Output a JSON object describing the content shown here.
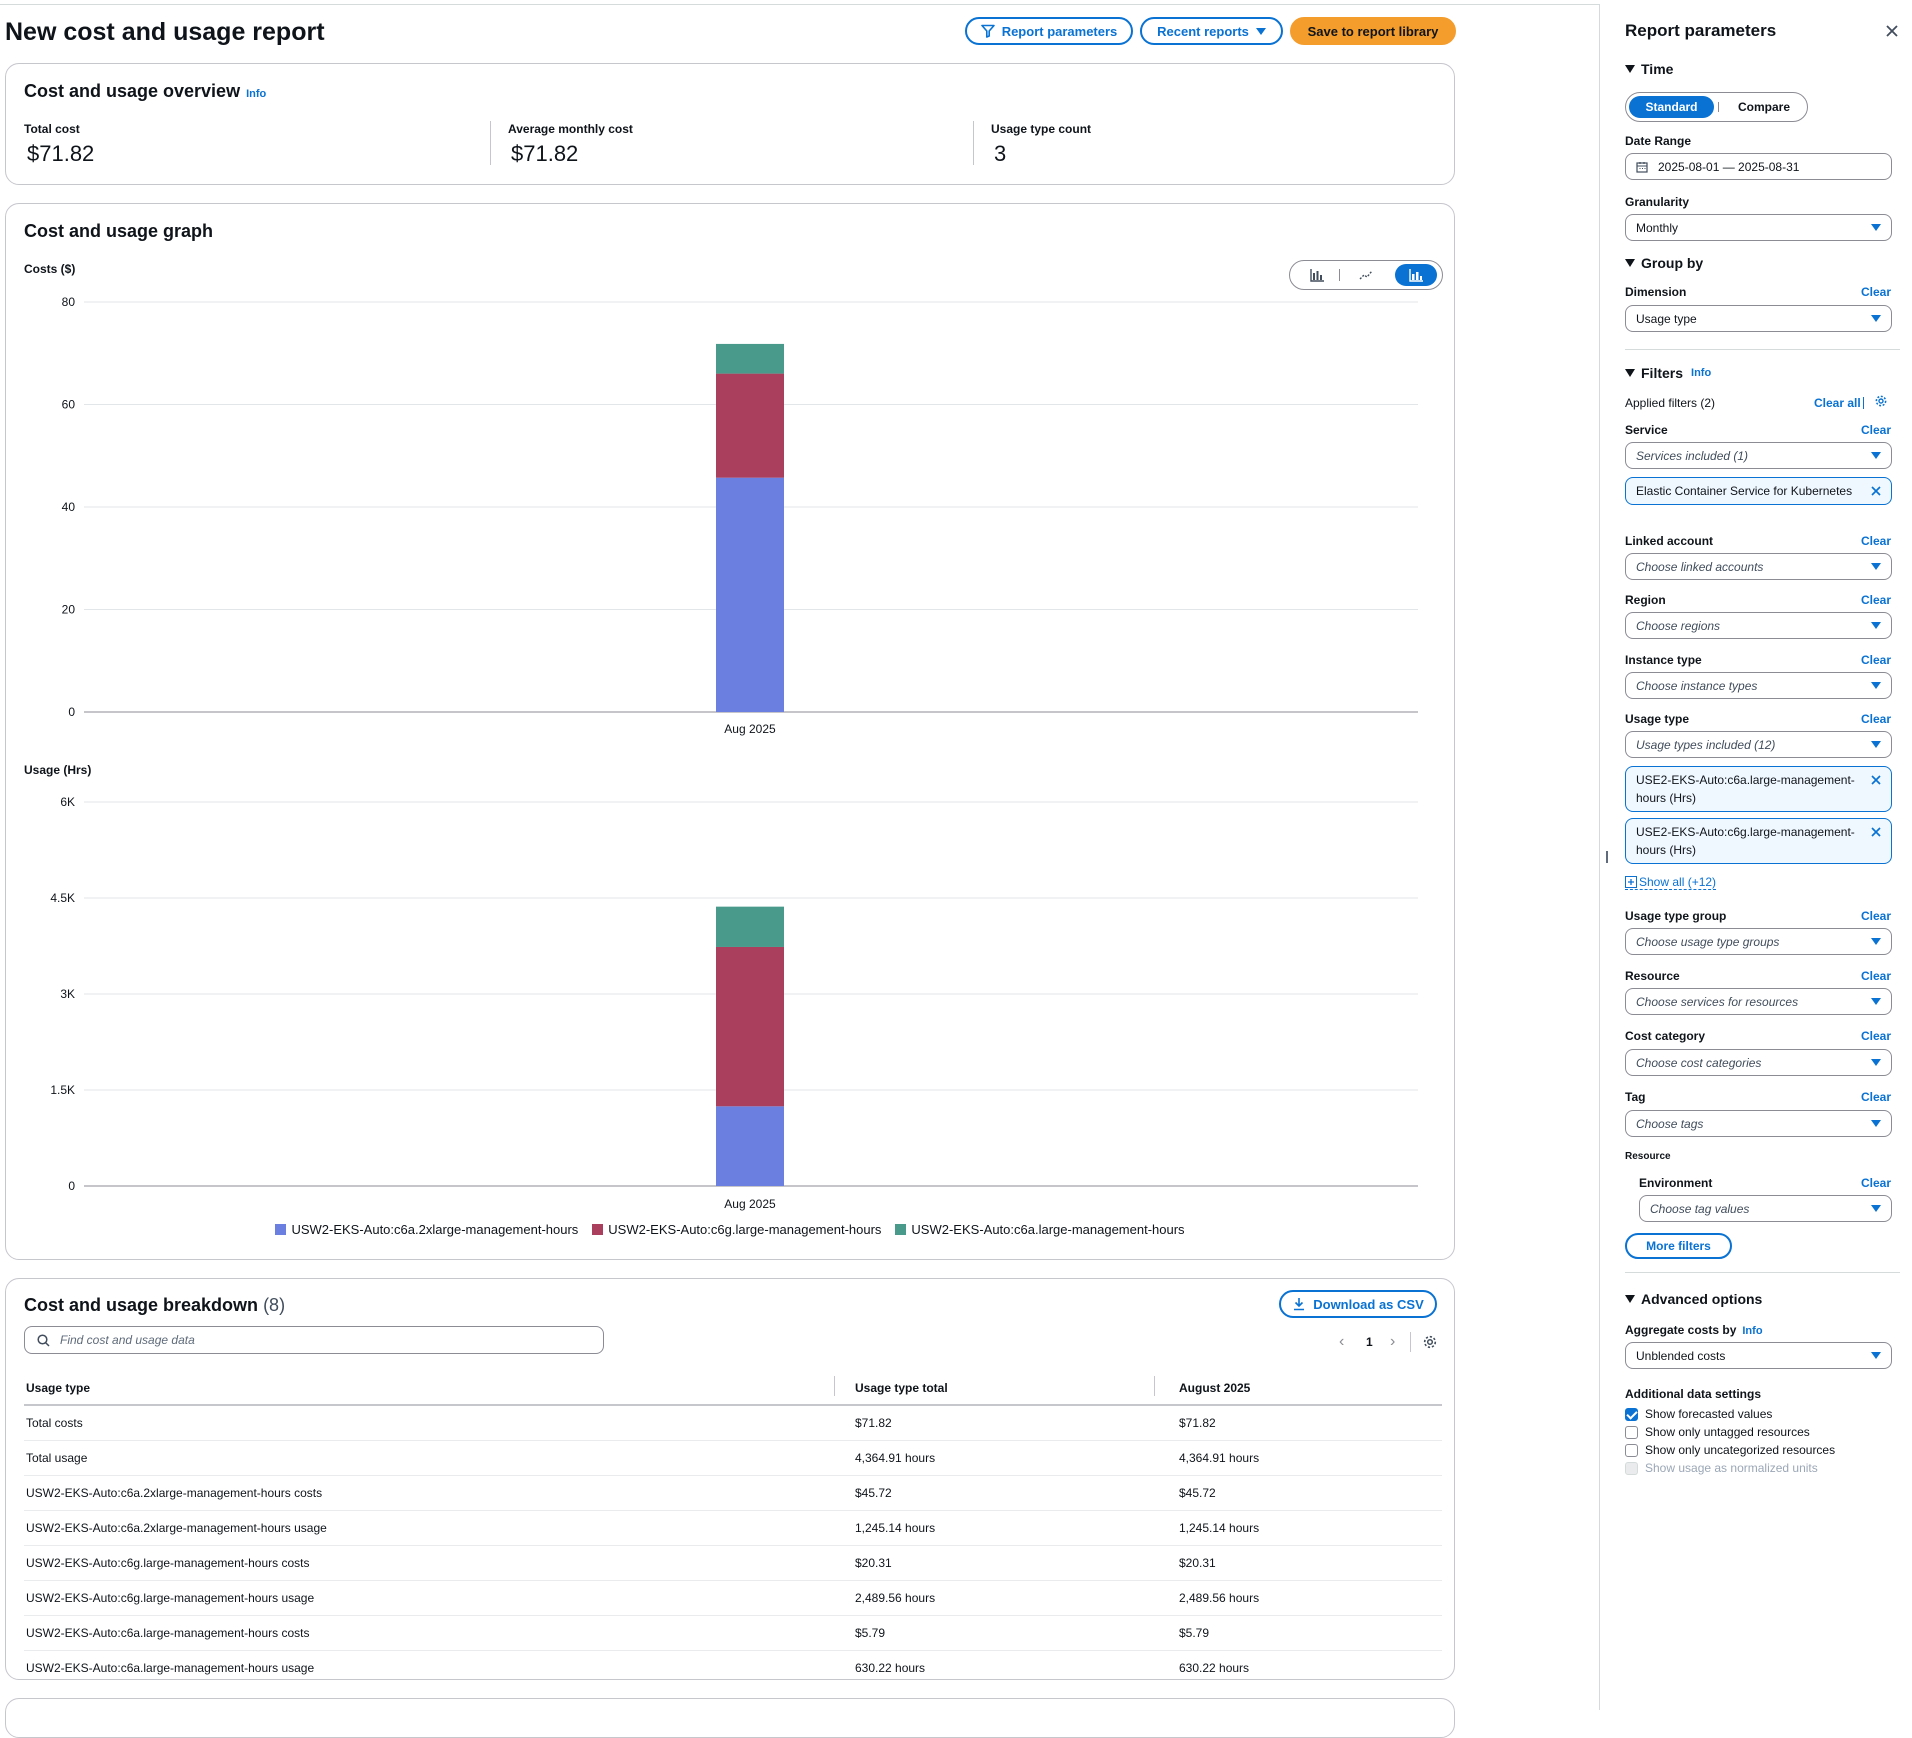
{
  "page": {
    "title": "New cost and usage report",
    "buttons": {
      "report_parameters": "Report parameters",
      "recent_reports": "Recent reports",
      "save": "Save to report library"
    }
  },
  "overview": {
    "title": "Cost and usage overview",
    "info": "Info",
    "metrics": [
      {
        "label": "Total cost",
        "value": "$71.82"
      },
      {
        "label": "Average monthly cost",
        "value": "$71.82"
      },
      {
        "label": "Usage type count",
        "value": "3"
      }
    ]
  },
  "graph": {
    "title": "Cost and usage graph",
    "view_modes": [
      "bar-chart-icon",
      "line-chart-icon",
      "stacked-bar-chart-icon"
    ],
    "active_view": "stacked-bar-chart-icon"
  },
  "chart_data": [
    {
      "type": "bar",
      "stacked": true,
      "ylabel": "Costs ($)",
      "categories": [
        "Aug 2025"
      ],
      "ylim": [
        0,
        80
      ],
      "yticks": [
        "0",
        "20",
        "40",
        "60",
        "80"
      ],
      "grid": true,
      "series": [
        {
          "name": "USW2-EKS-Auto:c6a.2xlarge-management-hours",
          "color": "#6a7fe0",
          "values": [
            45.72
          ]
        },
        {
          "name": "USW2-EKS-Auto:c6g.large-management-hours",
          "color": "#a93f5c",
          "values": [
            20.31
          ]
        },
        {
          "name": "USW2-EKS-Auto:c6a.large-management-hours",
          "color": "#4a9a8c",
          "values": [
            5.79
          ]
        }
      ]
    },
    {
      "type": "bar",
      "stacked": true,
      "ylabel": "Usage (Hrs)",
      "categories": [
        "Aug 2025"
      ],
      "ylim": [
        0,
        6000
      ],
      "yticks": [
        "0",
        "1.5K",
        "3K",
        "4.5K",
        "6K"
      ],
      "grid": true,
      "legend": "bottom",
      "series": [
        {
          "name": "USW2-EKS-Auto:c6a.2xlarge-management-hours",
          "color": "#6a7fe0",
          "values": [
            1245.14
          ]
        },
        {
          "name": "USW2-EKS-Auto:c6g.large-management-hours",
          "color": "#a93f5c",
          "values": [
            2489.56
          ]
        },
        {
          "name": "USW2-EKS-Auto:c6a.large-management-hours",
          "color": "#4a9a8c",
          "values": [
            630.22
          ]
        }
      ]
    }
  ],
  "breakdown": {
    "title": "Cost and usage breakdown",
    "count": "(8)",
    "download": "Download as CSV",
    "search_placeholder": "Find cost and usage data",
    "page": "1",
    "columns": [
      "Usage type",
      "Usage type total",
      "August 2025"
    ],
    "rows": [
      [
        "Total costs",
        "$71.82",
        "$71.82"
      ],
      [
        "Total usage",
        "4,364.91 hours",
        "4,364.91 hours"
      ],
      [
        "USW2-EKS-Auto:c6a.2xlarge-management-hours costs",
        "$45.72",
        "$45.72"
      ],
      [
        "USW2-EKS-Auto:c6a.2xlarge-management-hours usage",
        "1,245.14 hours",
        "1,245.14 hours"
      ],
      [
        "USW2-EKS-Auto:c6g.large-management-hours costs",
        "$20.31",
        "$20.31"
      ],
      [
        "USW2-EKS-Auto:c6g.large-management-hours usage",
        "2,489.56 hours",
        "2,489.56 hours"
      ],
      [
        "USW2-EKS-Auto:c6a.large-management-hours costs",
        "$5.79",
        "$5.79"
      ],
      [
        "USW2-EKS-Auto:c6a.large-management-hours usage",
        "630.22 hours",
        "630.22 hours"
      ]
    ]
  },
  "panel": {
    "title": "Report parameters",
    "time": {
      "label": "Time",
      "modes": [
        "Standard",
        "Compare"
      ],
      "date_range_label": "Date Range",
      "date_range": "2025-08-01 — 2025-08-31",
      "granularity_label": "Granularity",
      "granularity": "Monthly"
    },
    "group_by": {
      "label": "Group by",
      "dimension_label": "Dimension",
      "dimension": "Usage type",
      "clear": "Clear"
    },
    "filters": {
      "label": "Filters",
      "info": "Info",
      "applied": "Applied filters (2)",
      "clear_all": "Clear all",
      "clear": "Clear",
      "service_label": "Service",
      "service_value": "Services included (1)",
      "service_token": "Elastic Container Service for Kubernetes",
      "linked_account_label": "Linked account",
      "linked_account_ph": "Choose linked accounts",
      "region_label": "Region",
      "region_ph": "Choose regions",
      "instance_type_label": "Instance type",
      "instance_type_ph": "Choose instance types",
      "usage_type_label": "Usage type",
      "usage_type_value": "Usage types included (12)",
      "usage_tokens": [
        "USE2-EKS-Auto:c6a.large-management-hours (Hrs)",
        "USE2-EKS-Auto:c6g.large-management-hours (Hrs)"
      ],
      "show_all": "Show all (+12)",
      "usage_type_group_label": "Usage type group",
      "usage_type_group_ph": "Choose usage type groups",
      "resource_label": "Resource",
      "resource_ph": "Choose services for resources",
      "cost_category_label": "Cost category",
      "cost_category_ph": "Choose cost categories",
      "tag_label": "Tag",
      "tag_ph": "Choose tags",
      "tag_resource_label": "Resource",
      "environment_label": "Environment",
      "environment_ph": "Choose tag values",
      "more_filters": "More filters"
    },
    "advanced": {
      "label": "Advanced options",
      "aggregate_label": "Aggregate costs by",
      "info": "Info",
      "aggregate_value": "Unblended costs",
      "additional_label": "Additional data settings",
      "settings": [
        {
          "label": "Show forecasted values",
          "checked": true,
          "disabled": false
        },
        {
          "label": "Show only untagged resources",
          "checked": false,
          "disabled": false
        },
        {
          "label": "Show only uncategorized resources",
          "checked": false,
          "disabled": false
        },
        {
          "label": "Show usage as normalized units",
          "checked": false,
          "disabled": true
        }
      ]
    }
  }
}
